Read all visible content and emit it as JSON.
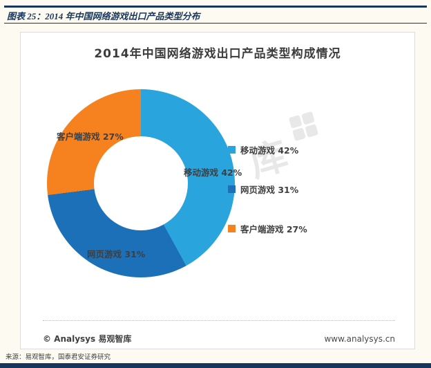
{
  "page": {
    "figure_caption": "图表 25：2014 年中国网络游戏出口产品类型分布",
    "source_note": "来源：易观智库，国泰君安证券研究",
    "accent_color": "#17365D"
  },
  "chart": {
    "title": "2014年中国网络游戏出口产品类型构成情况",
    "watermark": "易观智库",
    "footer_left": "© Analysys 易观智库",
    "footer_right": "www.analysys.cn"
  },
  "chart_data": {
    "type": "pie",
    "donut": true,
    "title": "2014年中国网络游戏出口产品类型构成情况",
    "categories": [
      "移动游戏",
      "网页游戏",
      "客户端游戏"
    ],
    "values": [
      42,
      31,
      27
    ],
    "unit": "%",
    "colors": [
      "#2AA4DC",
      "#1C70B8",
      "#F6821F"
    ],
    "labels": [
      "移动游戏 42%",
      "网页游戏 31%",
      "客户端游戏 27%"
    ],
    "legend_position": "right",
    "start_angle_deg": 0,
    "direction": "clockwise"
  }
}
